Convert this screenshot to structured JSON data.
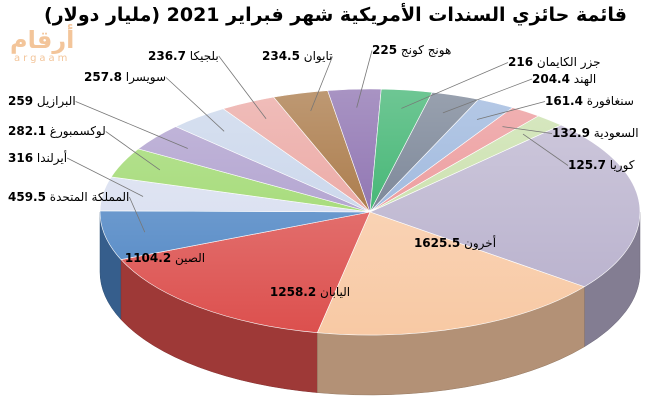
{
  "logo": {
    "arabic": "أرقام",
    "latin": "argaam"
  },
  "chart_data": {
    "type": "pie",
    "title": "قائمة حائزي السندات الأمريكية شهر فبراير 2021 (مليار دولار)",
    "slices": [
      {
        "name": "أخرون",
        "value": 1625.5,
        "color": "#b6aecb"
      },
      {
        "name": "اليابان",
        "value": 1258.2,
        "color": "#f8c9a4"
      },
      {
        "name": "الصين",
        "value": 1104.2,
        "color": "#dc4f4d"
      },
      {
        "name": "المملكة المتحدة",
        "value": 459.5,
        "color": "#4b83c3"
      },
      {
        "name": "أيرلندا",
        "value": 316,
        "color": "#d5dcef"
      },
      {
        "name": "لوكسمبورغ",
        "value": 282.1,
        "color": "#96d562"
      },
      {
        "name": "البرازيل",
        "value": 259,
        "color": "#a594c8"
      },
      {
        "name": "سويسرا",
        "value": 257.8,
        "color": "#c2d0e8"
      },
      {
        "name": "بلجيكا",
        "value": 236.7,
        "color": "#e89a95"
      },
      {
        "name": "تايوان",
        "value": 234.5,
        "color": "#9b6228"
      },
      {
        "name": "هونج كونج",
        "value": 225,
        "color": "#7a5aa3"
      },
      {
        "name": "جزر الكايمان",
        "value": 216,
        "color": "#20a85a"
      },
      {
        "name": "الهند",
        "value": 204.4,
        "color": "#626f84"
      },
      {
        "name": "سنغافورة",
        "value": 161.4,
        "color": "#8eacd8"
      },
      {
        "name": "السعودية",
        "value": 132.9,
        "color": "#e98a8c"
      },
      {
        "name": "كوريا",
        "value": 125.7,
        "color": "#c3dca1"
      }
    ]
  }
}
